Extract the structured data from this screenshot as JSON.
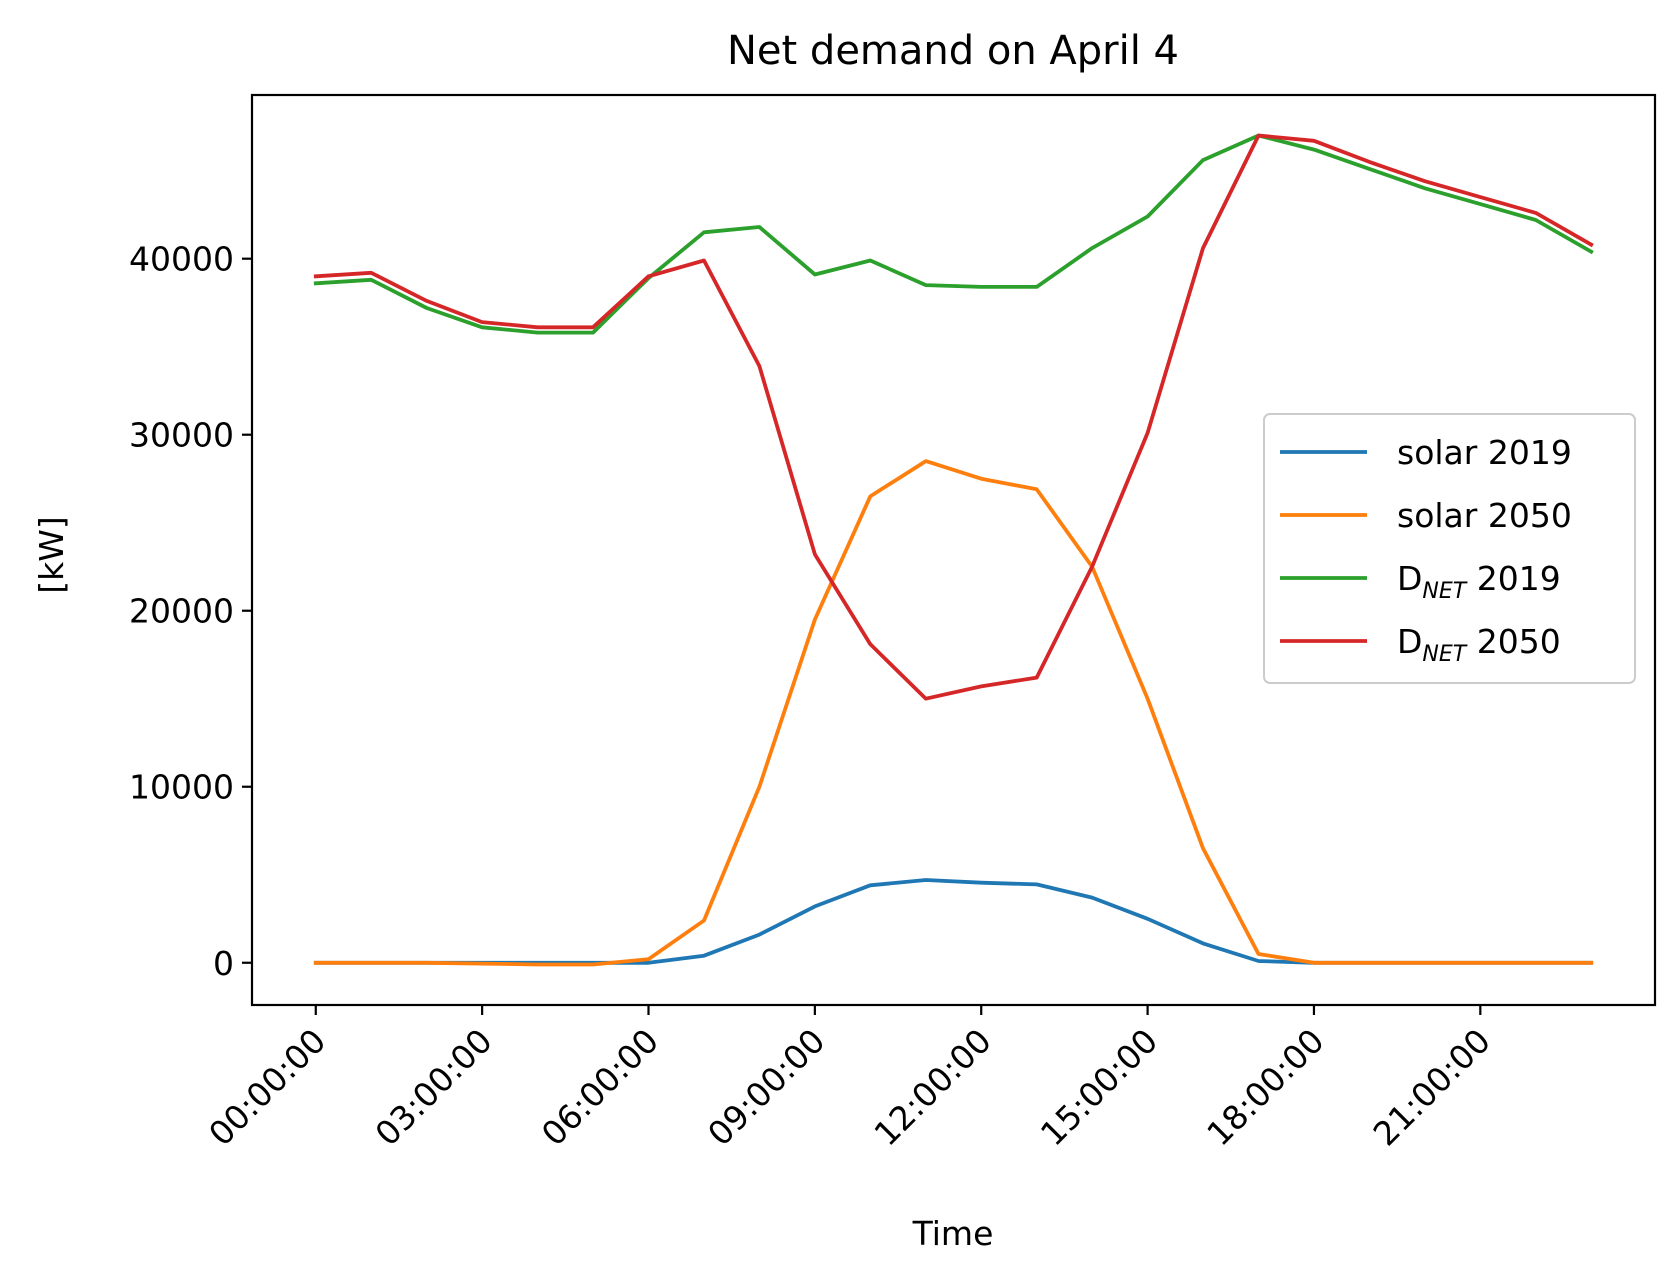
{
  "chart_data": {
    "type": "line",
    "title": "Net demand on April 4",
    "xlabel": "Time",
    "ylabel": "[kW]",
    "x": [
      "00:00:00",
      "01:00:00",
      "02:00:00",
      "03:00:00",
      "04:00:00",
      "05:00:00",
      "06:00:00",
      "07:00:00",
      "08:00:00",
      "09:00:00",
      "10:00:00",
      "11:00:00",
      "12:00:00",
      "13:00:00",
      "14:00:00",
      "15:00:00",
      "16:00:00",
      "17:00:00",
      "18:00:00",
      "19:00:00",
      "20:00:00",
      "21:00:00",
      "22:00:00",
      "23:00:00"
    ],
    "x_ticks": [
      "00:00:00",
      "03:00:00",
      "06:00:00",
      "09:00:00",
      "12:00:00",
      "15:00:00",
      "18:00:00",
      "21:00:00"
    ],
    "x_range": [
      -1.15,
      24.15
    ],
    "y_ticks": [
      0,
      10000,
      20000,
      30000,
      40000
    ],
    "ylim": [
      -2400,
      49300
    ],
    "legend_position": "center-right",
    "grid": false,
    "series": [
      {
        "name": "solar 2019",
        "label_main": "solar 2019",
        "color": "#1f77b4",
        "values": [
          0,
          0,
          0,
          0,
          0,
          0,
          0,
          400,
          1600,
          3200,
          4400,
          4700,
          4550,
          4450,
          3700,
          2500,
          1100,
          100,
          0,
          0,
          0,
          0,
          0,
          0
        ]
      },
      {
        "name": "solar 2050",
        "label_main": "solar 2050",
        "color": "#ff7f0e",
        "values": [
          0,
          0,
          0,
          -50,
          -100,
          -100,
          200,
          2400,
          10000,
          19500,
          26500,
          28500,
          27500,
          26900,
          22500,
          15000,
          6500,
          500,
          0,
          0,
          0,
          0,
          0,
          0
        ]
      },
      {
        "name": "D_NET 2019",
        "label_main": "D",
        "label_sub": "NET",
        "label_tail": " 2019",
        "color": "#2ca02c",
        "values": [
          38600,
          38800,
          37200,
          36100,
          35800,
          35800,
          38900,
          41500,
          41800,
          39100,
          39900,
          38500,
          38400,
          38400,
          40600,
          42400,
          45600,
          47000,
          46200,
          45100,
          44000,
          43100,
          42200,
          40400
        ]
      },
      {
        "name": "D_NET 2050",
        "label_main": "D",
        "label_sub": "NET",
        "label_tail": " 2050",
        "color": "#d62728",
        "values": [
          39000,
          39200,
          37600,
          36400,
          36100,
          36100,
          39000,
          39900,
          33900,
          23200,
          18100,
          15000,
          15700,
          16200,
          22500,
          30100,
          40600,
          47000,
          46700,
          45500,
          44400,
          43500,
          42600,
          40800
        ]
      }
    ]
  }
}
